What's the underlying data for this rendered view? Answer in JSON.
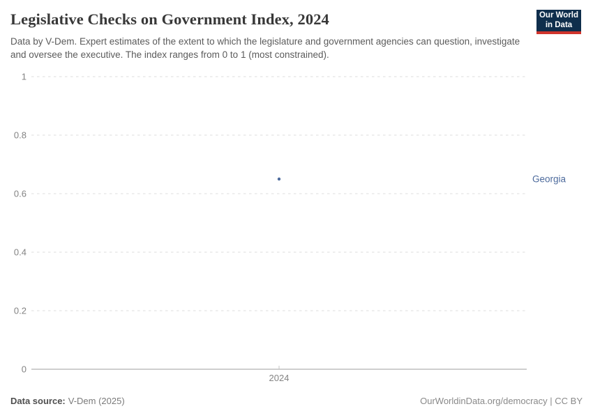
{
  "header": {
    "title": "Legislative Checks on Government Index, 2024",
    "subtitle": "Data by V-Dem. Expert estimates of the extent to which the legislature and government agencies can question, investigate and oversee the executive. The index ranges from 0 to 1 (most constrained).",
    "logo": {
      "line1": "Our World",
      "line2": "in Data",
      "bg_color": "#0f2e4c",
      "stripe_color": "#d0342c"
    }
  },
  "chart_data": {
    "type": "scatter",
    "title": "Legislative Checks on Government Index, 2024",
    "xlabel": "",
    "ylabel": "",
    "ylim": [
      0,
      1
    ],
    "yticks": [
      0,
      0.2,
      0.4,
      0.6,
      0.8,
      1
    ],
    "xticks": [
      2024
    ],
    "grid": "horizontal-dashed",
    "legend_position": "right-entity-label",
    "series": [
      {
        "name": "Georgia",
        "x": 2024,
        "y": 0.65,
        "color": "#4c6a9c"
      }
    ]
  },
  "footer": {
    "source_label": "Data source:",
    "source_value": "V-Dem (2025)",
    "credit": "OurWorldinData.org/democracy | CC BY"
  }
}
